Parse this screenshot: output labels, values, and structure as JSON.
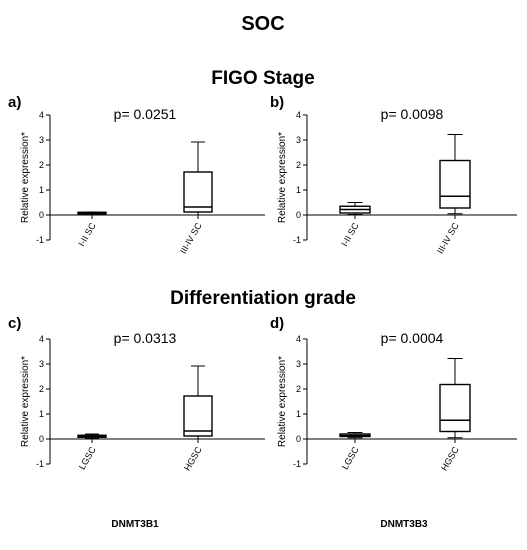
{
  "figure": {
    "title": "SOC",
    "section_top": "FIGO Stage",
    "section_bottom": "Differentiation grade",
    "gene_left": "DNMT3B1",
    "gene_right": "DNMT3B3"
  },
  "chart_data": [
    {
      "type": "box",
      "panel": "a)",
      "p_label": "p= 0.0251",
      "ylabel": "Relative expression*",
      "ylim": [
        -1,
        4
      ],
      "yticks": [
        -1,
        0,
        1,
        2,
        3,
        4
      ],
      "categories": [
        "I-II SC",
        "III-IV SC"
      ],
      "boxes": [
        {
          "min": 0.05,
          "q1": 0.07,
          "median": 0.09,
          "q3": 0.11,
          "max": 0.12
        },
        {
          "min": 0.0,
          "q1": 0.12,
          "median": 0.32,
          "q3": 1.72,
          "max": 2.92
        }
      ]
    },
    {
      "type": "box",
      "panel": "b)",
      "p_label": "p= 0.0098",
      "ylabel": "Relative expression*",
      "ylim": [
        -1,
        4
      ],
      "yticks": [
        -1,
        0,
        1,
        2,
        3,
        4
      ],
      "categories": [
        "I-II SC",
        "III-IV SC"
      ],
      "boxes": [
        {
          "min": 0.02,
          "q1": 0.08,
          "median": 0.22,
          "q3": 0.35,
          "max": 0.5
        },
        {
          "min": 0.05,
          "q1": 0.28,
          "median": 0.75,
          "q3": 2.18,
          "max": 3.22
        }
      ]
    },
    {
      "type": "box",
      "panel": "c)",
      "p_label": "p= 0.0313",
      "ylabel": "Relative expression*",
      "ylim": [
        -1,
        4
      ],
      "yticks": [
        -1,
        0,
        1,
        2,
        3,
        4
      ],
      "categories": [
        "LGSC",
        "HGSC"
      ],
      "boxes": [
        {
          "min": 0.02,
          "q1": 0.07,
          "median": 0.1,
          "q3": 0.15,
          "max": 0.2
        },
        {
          "min": 0.0,
          "q1": 0.12,
          "median": 0.32,
          "q3": 1.72,
          "max": 2.92
        }
      ]
    },
    {
      "type": "box",
      "panel": "d)",
      "p_label": "p= 0.0004",
      "ylabel": "Relative expression*",
      "ylim": [
        -1,
        4
      ],
      "yticks": [
        -1,
        0,
        1,
        2,
        3,
        4
      ],
      "categories": [
        "LGSC",
        "HGSC"
      ],
      "boxes": [
        {
          "min": 0.05,
          "q1": 0.1,
          "median": 0.14,
          "q3": 0.2,
          "max": 0.26
        },
        {
          "min": 0.05,
          "q1": 0.3,
          "median": 0.75,
          "q3": 2.18,
          "max": 3.22
        }
      ]
    }
  ]
}
